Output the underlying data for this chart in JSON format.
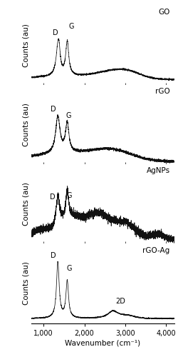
{
  "xlim": [
    700,
    4200
  ],
  "xticks": [
    1000,
    2000,
    3000,
    4000
  ],
  "xticklabels": [
    "1,000",
    "2,000",
    "3,000",
    "4,000"
  ],
  "xlabel": "Wavenumber (cm⁻¹)",
  "ylabel": "Counts (au)",
  "panels": [
    "GO",
    "rGO",
    "AgNPs",
    "rGO-Ag"
  ],
  "D_band": 1350,
  "G_band": 1580,
  "band_2D": 2700,
  "noise_seed": 42,
  "line_color": "#111111",
  "background_color": "#ffffff",
  "tick_fontsize": 7,
  "label_fontsize": 7.5,
  "panel_label_fontsize": 7.5,
  "band_label_fontsize": 7
}
